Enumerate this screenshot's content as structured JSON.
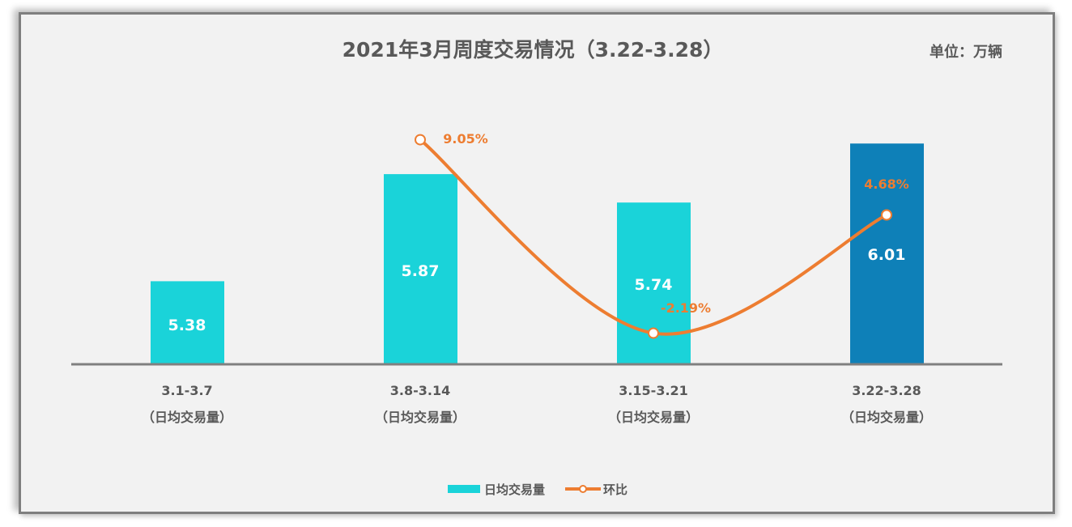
{
  "chart_data": {
    "type": "bar+line",
    "title": "2021年3月周度交易情况（3.22-3.28）",
    "unit_label": "单位：万辆",
    "categories": [
      "3.1-3.7",
      "3.8-3.14",
      "3.15-3.21",
      "3.22-3.28"
    ],
    "category_sublabel": "（日均交易量）",
    "series": [
      {
        "name": "日均交易量",
        "kind": "bar",
        "values": [
          5.38,
          5.87,
          5.74,
          6.01
        ],
        "labels": [
          "5.38",
          "5.87",
          "5.74",
          "6.01"
        ],
        "colors": [
          "#1ad3d9",
          "#1ad3d9",
          "#1ad3d9",
          "#0e80b8"
        ]
      },
      {
        "name": "环比",
        "kind": "line",
        "values": [
          null,
          9.05,
          -2.19,
          4.68
        ],
        "labels": [
          "",
          "9.05%",
          "-2.19%",
          "4.68%"
        ],
        "color": "#ed7d31"
      }
    ],
    "legend": "bottom",
    "grid": false
  }
}
